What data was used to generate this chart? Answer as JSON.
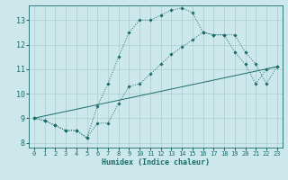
{
  "xlabel": "Humidex (Indice chaleur)",
  "xlim": [
    -0.5,
    23.5
  ],
  "ylim": [
    7.8,
    13.6
  ],
  "yticks": [
    8,
    9,
    10,
    11,
    12,
    13
  ],
  "xticks": [
    0,
    1,
    2,
    3,
    4,
    5,
    6,
    7,
    8,
    9,
    10,
    11,
    12,
    13,
    14,
    15,
    16,
    17,
    18,
    19,
    20,
    21,
    22,
    23
  ],
  "bg_color": "#cce8ea",
  "grid_color": "#aacccc",
  "line_color": "#1a6b6b",
  "line1_x": [
    0,
    1,
    2,
    3,
    4,
    5,
    6,
    7,
    8,
    9,
    10,
    11,
    12,
    13,
    14,
    15,
    16,
    17,
    18,
    19,
    20,
    21,
    22,
    23
  ],
  "line1_y": [
    9.0,
    8.9,
    8.7,
    8.5,
    8.5,
    8.2,
    8.8,
    8.8,
    9.6,
    10.3,
    10.4,
    10.8,
    11.2,
    11.6,
    11.9,
    12.2,
    12.5,
    12.4,
    12.4,
    11.7,
    11.2,
    10.4,
    11.0,
    11.1
  ],
  "line2_x": [
    0,
    1,
    2,
    3,
    4,
    5,
    6,
    7,
    8,
    9,
    10,
    11,
    12,
    13,
    14,
    15,
    16,
    17,
    18,
    19,
    20,
    21,
    22,
    23
  ],
  "line2_y": [
    9.0,
    8.9,
    8.7,
    8.5,
    8.5,
    8.2,
    9.5,
    10.4,
    11.5,
    12.5,
    13.0,
    13.0,
    13.2,
    13.4,
    13.5,
    13.3,
    12.5,
    12.4,
    12.4,
    12.4,
    11.7,
    11.2,
    10.4,
    11.1
  ],
  "line3_x": [
    0,
    23
  ],
  "line3_y": [
    9.0,
    11.1
  ]
}
